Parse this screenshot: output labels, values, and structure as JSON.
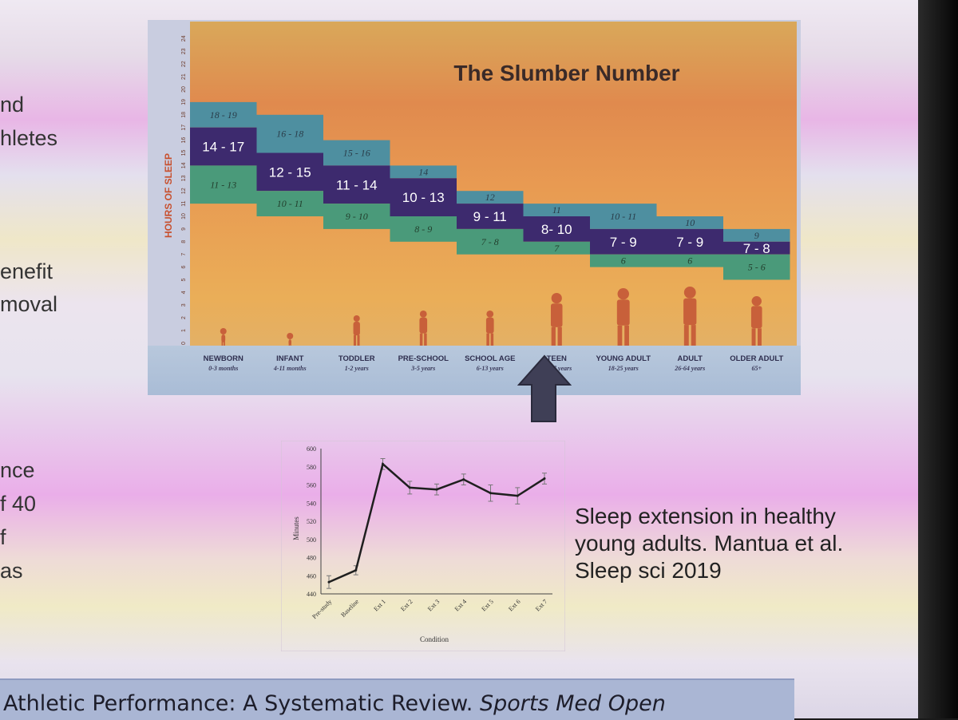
{
  "slide": {
    "left_fragments": [
      "nd",
      "hletes",
      "enefit",
      "moval",
      "nce",
      "f 40",
      "f",
      "as"
    ],
    "citation_main": "Athletic Performance: A Systematic Review.",
    "citation_journal": "Sports Med Open"
  },
  "slumber": {
    "title": "The Slumber Number",
    "ylabel": "HOURS OF SLEEP",
    "y_ticks": [
      "0",
      "1",
      "2",
      "3",
      "4",
      "5",
      "6",
      "7",
      "8",
      "9",
      "10",
      "11",
      "12",
      "13",
      "14",
      "15",
      "16",
      "17",
      "18",
      "19",
      "20",
      "21",
      "22",
      "23",
      "24"
    ],
    "groups": [
      {
        "name": "NEWBORN",
        "ages": "0-3 months",
        "high": "18 - 19",
        "mid": "14 - 17",
        "low": "11 - 13",
        "hi_top": 19,
        "mid_top": 17,
        "mid_bot": 14,
        "lo_bot": 11
      },
      {
        "name": "INFANT",
        "ages": "4-11 months",
        "high": "16 - 18",
        "mid": "12 - 15",
        "low": "10 - 11",
        "hi_top": 18,
        "mid_top": 15,
        "mid_bot": 12,
        "lo_bot": 10
      },
      {
        "name": "TODDLER",
        "ages": "1-2 years",
        "high": "15 - 16",
        "mid": "11 - 14",
        "low": "9 - 10",
        "hi_top": 16,
        "mid_top": 14,
        "mid_bot": 11,
        "lo_bot": 9
      },
      {
        "name": "PRE-SCHOOL",
        "ages": "3-5 years",
        "high": "14",
        "mid": "10 - 13",
        "low": "8 - 9",
        "hi_top": 14,
        "mid_top": 13,
        "mid_bot": 10,
        "lo_bot": 8
      },
      {
        "name": "SCHOOL AGE",
        "ages": "6-13 years",
        "high": "12",
        "mid": "9 - 11",
        "low": "7 - 8",
        "hi_top": 12,
        "mid_top": 11,
        "mid_bot": 9,
        "lo_bot": 7
      },
      {
        "name": "TEEN",
        "ages": "14-17 years",
        "high": "11",
        "mid": "8- 10",
        "low": "7",
        "hi_top": 11,
        "mid_top": 10,
        "mid_bot": 8,
        "lo_bot": 7
      },
      {
        "name": "YOUNG ADULT",
        "ages": "18-25 years",
        "high": "10 - 11",
        "mid": "7 - 9",
        "low": "6",
        "hi_top": 11,
        "mid_top": 9,
        "mid_bot": 7,
        "lo_bot": 6
      },
      {
        "name": "ADULT",
        "ages": "26-64 years",
        "high": "10",
        "mid": "7 - 9",
        "low": "6",
        "hi_top": 10,
        "mid_top": 9,
        "mid_bot": 7,
        "lo_bot": 6
      },
      {
        "name": "OLDER ADULT",
        "ages": "65+",
        "high": "9",
        "mid": "7 - 8",
        "low": "5 - 6",
        "hi_top": 9,
        "mid_top": 8,
        "mid_bot": 7,
        "lo_bot": 5
      }
    ],
    "colors": {
      "recommended": "#3d2a6e",
      "may_be_appropriate_upper": "#4e8fa0",
      "may_be_appropriate_lower": "#4a9a7a",
      "silhouette": "#c8603a"
    }
  },
  "caption": [
    "Sleep extension in healthy",
    "young adults. Mantua et al.",
    "Sleep sci 2019"
  ],
  "chart_data": {
    "type": "line",
    "xlabel": "Condition",
    "ylabel": "Minutes",
    "ylim": [
      440,
      600
    ],
    "y_ticks": [
      440,
      460,
      480,
      500,
      520,
      540,
      560,
      580,
      600
    ],
    "categories": [
      "Pre-study",
      "Baseline",
      "Ext 1",
      "Ext 2",
      "Ext 3",
      "Ext 4",
      "Ext 5",
      "Ext 6",
      "Ext 7"
    ],
    "values": [
      453,
      466,
      583,
      557,
      555,
      566,
      551,
      548,
      567
    ],
    "errors": [
      7,
      5,
      6,
      7,
      6,
      6,
      9,
      9,
      6
    ]
  }
}
